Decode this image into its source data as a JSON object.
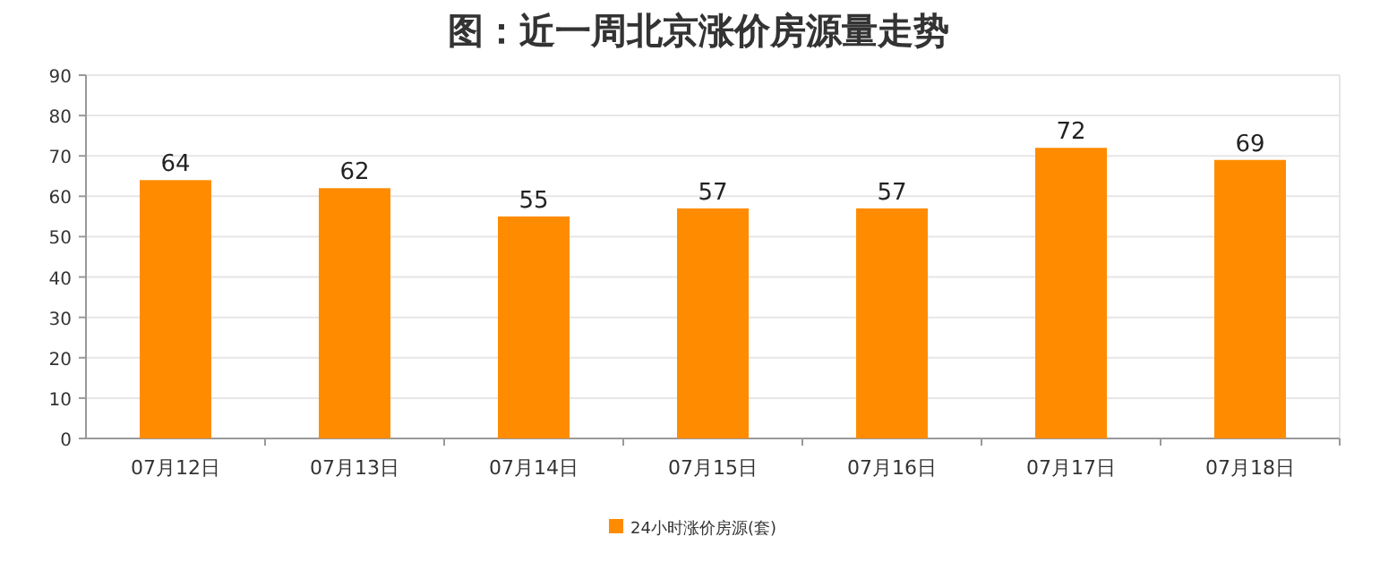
{
  "chart_data": {
    "type": "bar",
    "title": "图：近一周北京涨价房源量走势",
    "categories": [
      "07月12日",
      "07月13日",
      "07月14日",
      "07月15日",
      "07月16日",
      "07月17日",
      "07月18日"
    ],
    "series": [
      {
        "name": "24小时涨价房源(套)",
        "color": "#ff8c00",
        "values": [
          64,
          62,
          55,
          57,
          57,
          72,
          69
        ]
      }
    ],
    "ylim": [
      0,
      90
    ],
    "yticks": [
      0,
      10,
      20,
      30,
      40,
      50,
      60,
      70,
      80,
      90
    ],
    "grid": "y",
    "legend": "bottom",
    "data_labels": true
  }
}
